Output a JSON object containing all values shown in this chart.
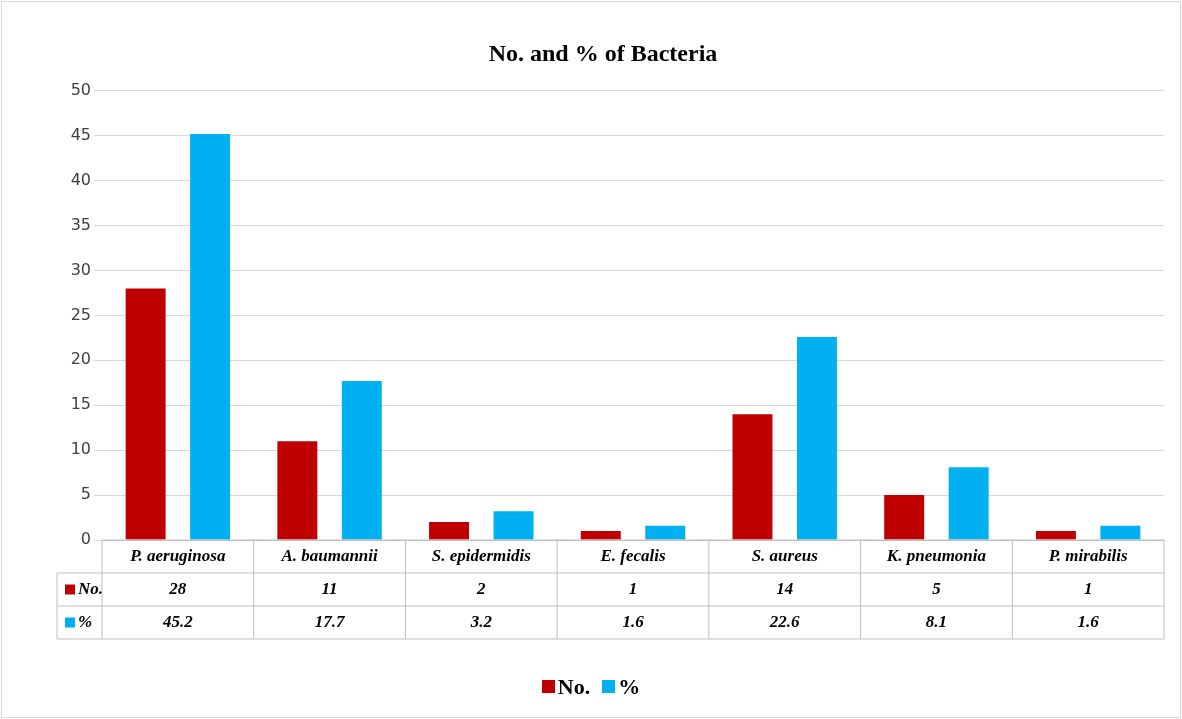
{
  "chart_data": {
    "type": "bar",
    "title": "No. and % of Bacteria",
    "categories": [
      "P. aeruginosa",
      "A. baumannii",
      "S. epidermidis",
      "E. fecalis",
      "S. aureus",
      "K. pneumonia",
      "P. mirabilis"
    ],
    "series": [
      {
        "name": "No.",
        "color": "#c00000",
        "values": [
          28,
          11,
          2,
          1,
          14,
          5,
          1
        ]
      },
      {
        "name": "%",
        "color": "#00b0f0",
        "values": [
          45.2,
          17.7,
          3.2,
          1.6,
          22.6,
          8.1,
          1.6
        ]
      }
    ],
    "ylim": [
      0,
      50
    ],
    "yticks": [
      0,
      5,
      10,
      15,
      20,
      25,
      30,
      35,
      40,
      45,
      50
    ],
    "grid": "y",
    "legend": "bottom",
    "data_labels": true
  }
}
